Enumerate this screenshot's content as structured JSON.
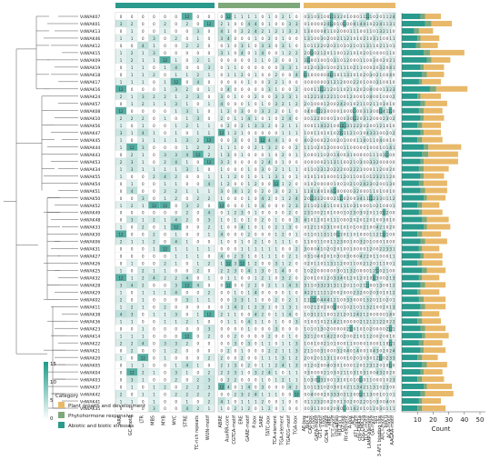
{
  "chart_data": {
    "type": "heatmap",
    "genes": [
      "VdWAK07",
      "VdWAK01",
      "VdWAK13",
      "VdWAK46",
      "VdWAK12",
      "VdWAK15",
      "VdWAK09",
      "VdWAK19",
      "VdWAK18",
      "VdWAK17",
      "VdWAK16",
      "VdWAK24",
      "VdWAK57",
      "VdWAK08",
      "VdWAK10",
      "VdWAK56",
      "VdWAK47",
      "VdWAK45",
      "VdWAK44",
      "VdWAK43",
      "VdWAK53",
      "VdWAK34",
      "VdWAK55",
      "VdWAK54",
      "VdWAK51",
      "VdWAK50",
      "VdWAK52",
      "VdWAK49",
      "VdWAK48",
      "VdWAK33",
      "VdWAK30",
      "VdWAK06",
      "VdWAK31",
      "VdWAK27",
      "VdWAK26",
      "VdWAK25",
      "VdWAK32",
      "VdWAK28",
      "VdWAK29",
      "VdWAK02",
      "VdWAK11",
      "VdWAK38",
      "VdWAK36",
      "VdWAK23",
      "VdWAK14",
      "VdWAK22",
      "VdWAK21",
      "VdWAK20",
      "VdWAK05",
      "VdWAK04",
      "VdWAK03",
      "VdWAK37",
      "VdWAK42",
      "VdWAK41",
      "VdWAK35"
    ],
    "categories": [
      "Plant growth and development",
      "Phytohormone responsive",
      "Abiotic and biotic stresses"
    ],
    "category_colors": [
      "#e8b96a",
      "#7fa87a",
      "#2a9a8c"
    ],
    "columns": {
      "abiotic": [
        "ARE",
        "GC-motif",
        "LTR",
        "MBS",
        "MYB",
        "MYC",
        "STRE",
        "TC-rich repeats",
        "WUN-motif"
      ],
      "hormone": [
        "ABRE",
        "AuxRR-core",
        "CGTCA-motif",
        "ERE",
        "GARE-motif",
        "P-box",
        "SARE",
        "TATC-box",
        "TCA-element",
        "TGA-element",
        "TGACG-motif",
        "TGA-box"
      ],
      "growth": [
        "AE-box",
        "Box 4",
        "CAT-box",
        "G-box",
        "GATA-motif",
        "GT1-motif",
        "I-box",
        "GCN4_motif",
        "MRE",
        "TCT-motif",
        "circadian",
        "HD-Zip 1",
        "O2-site",
        "RY-element",
        "A-box",
        "ACE",
        "AT1-motif",
        "chs-CMA1a",
        "chs-CMA2a",
        "TCCC-motif",
        "LAMP-element",
        "GA-motif",
        "Sp1",
        "3-AF1 binding site",
        "ATCT-motif",
        "box II",
        "ACA-motif",
        "AAGAA-motif"
      ]
    },
    "colorbar_ticks": [
      15,
      10,
      5,
      0
    ],
    "legend_title": "Category",
    "xaxis_label": "Count",
    "x_ticks": [
      10,
      20,
      30,
      40,
      50
    ],
    "bars": {
      "abiotic": [
        12,
        15,
        8,
        10,
        9,
        14,
        16,
        12,
        13,
        11,
        18,
        10,
        12,
        11,
        12,
        10,
        12,
        10,
        14,
        13,
        12,
        11,
        12,
        11,
        12,
        14,
        10,
        11,
        13,
        14,
        10,
        12,
        11,
        12,
        10,
        13,
        11,
        12,
        10,
        11,
        12,
        11,
        10,
        12,
        13,
        11,
        12,
        10,
        13,
        12,
        10,
        14,
        12,
        11,
        10
      ],
      "hormone": [
        3,
        4,
        3,
        2,
        3,
        4,
        3,
        2,
        3,
        2,
        4,
        2,
        3,
        3,
        2,
        3,
        2,
        3,
        3,
        4,
        2,
        3,
        2,
        3,
        3,
        2,
        3,
        2,
        3,
        2,
        3,
        3,
        2,
        2,
        3,
        3,
        2,
        3,
        2,
        3,
        3,
        2,
        3,
        3,
        2,
        3,
        2,
        3,
        3,
        2,
        3,
        2,
        3,
        2,
        3
      ],
      "growth": [
        10,
        13,
        9,
        12,
        11,
        22,
        12,
        13,
        11,
        12,
        20,
        13,
        14,
        12,
        13,
        12,
        11,
        13,
        21,
        19,
        22,
        16,
        13,
        15,
        14,
        12,
        11,
        13,
        14,
        15,
        12,
        14,
        11,
        12,
        13,
        12,
        11,
        13,
        12,
        14,
        13,
        11,
        12,
        13,
        15,
        12,
        14,
        10,
        13,
        12,
        14,
        16,
        18,
        12,
        15
      ]
    }
  }
}
